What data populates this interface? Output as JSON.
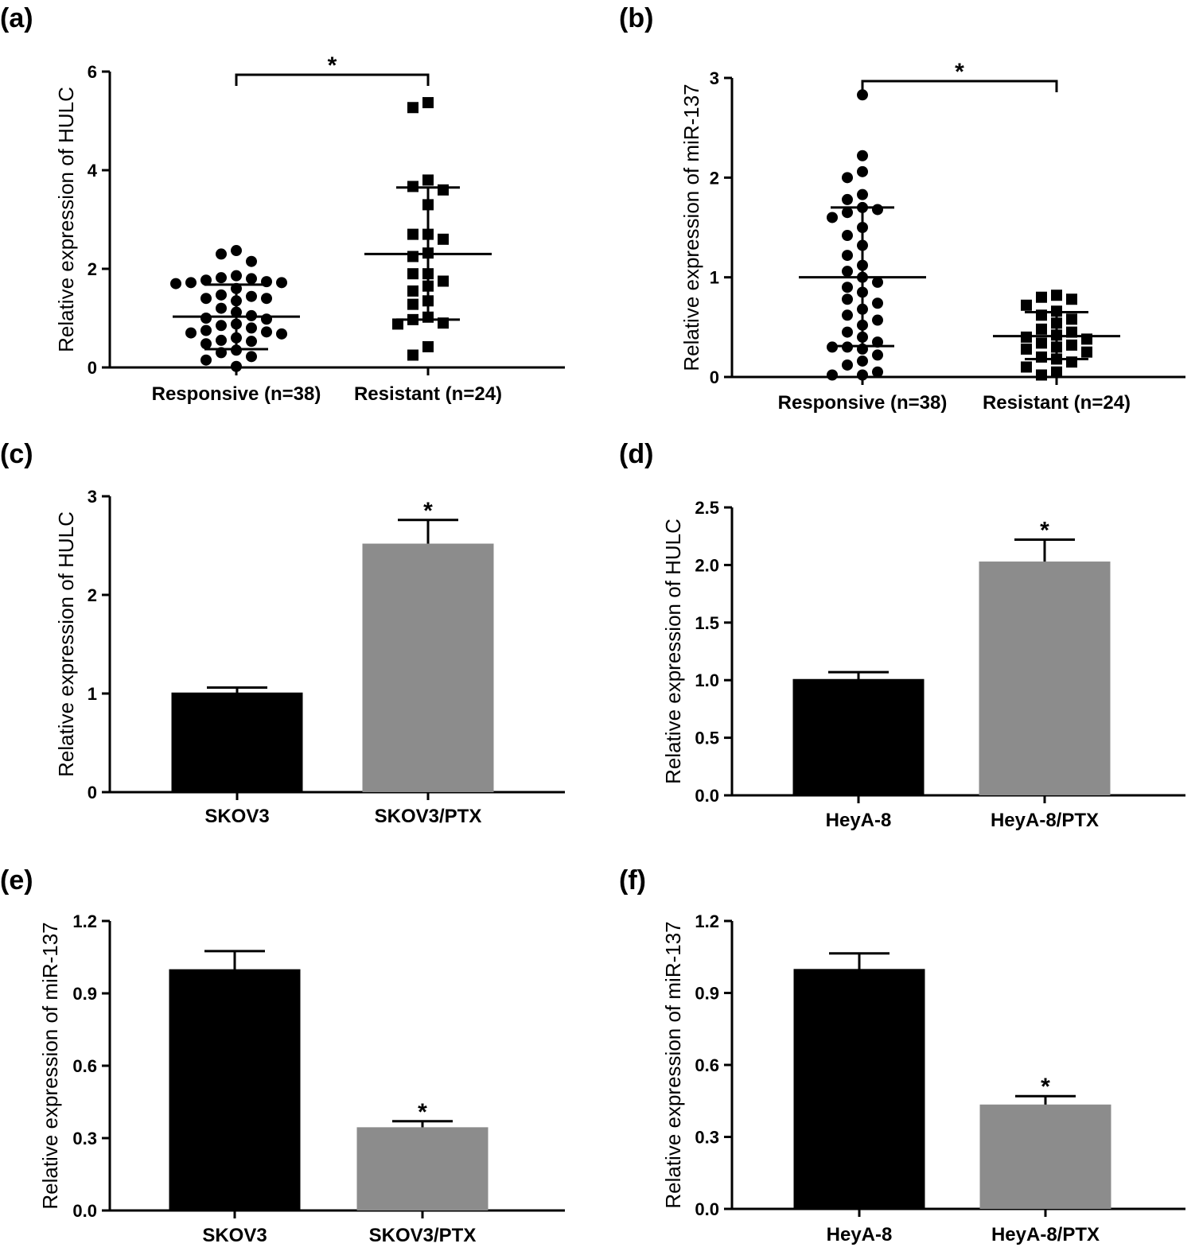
{
  "chart_data": [
    {
      "panel": "(a)",
      "type": "scatter",
      "ylabel": "Relative expression of HULC",
      "xlabel": "",
      "ylim": [
        0,
        6
      ],
      "yticks": [
        "0",
        "2",
        "4",
        "6"
      ],
      "significance": "*",
      "groups": [
        {
          "name": "Responsive (n=38)",
          "marker": "circle",
          "mean": 1.03,
          "sd_low": 0.37,
          "sd_high": 1.68,
          "values": [
            2.37,
            2.3,
            2.15,
            1.86,
            1.82,
            1.8,
            1.77,
            1.74,
            1.72,
            1.72,
            1.7,
            1.6,
            1.47,
            1.44,
            1.4,
            1.4,
            1.35,
            1.2,
            1.12,
            1.05,
            1.0,
            0.98,
            0.88,
            0.85,
            0.8,
            0.75,
            0.72,
            0.7,
            0.68,
            0.6,
            0.55,
            0.53,
            0.48,
            0.35,
            0.3,
            0.22,
            0.15,
            0.02
          ]
        },
        {
          "name": "Resistant (n=24)",
          "marker": "square",
          "mean": 2.3,
          "sd_low": 0.97,
          "sd_high": 3.65,
          "values": [
            5.37,
            5.27,
            3.8,
            3.67,
            3.6,
            3.3,
            2.7,
            2.7,
            2.6,
            2.32,
            2.25,
            1.9,
            1.9,
            1.75,
            1.65,
            1.55,
            1.35,
            1.28,
            1.02,
            0.97,
            0.9,
            0.88,
            0.42,
            0.25
          ]
        }
      ]
    },
    {
      "panel": "(b)",
      "type": "scatter",
      "ylabel": "Relative expression of miR-137",
      "xlabel": "",
      "ylim": [
        0,
        3
      ],
      "yticks": [
        "0",
        "1",
        "2",
        "3"
      ],
      "significance": "*",
      "groups": [
        {
          "name": "Responsive (n=38)",
          "marker": "circle",
          "mean": 1.0,
          "sd_low": 0.31,
          "sd_high": 1.7,
          "values": [
            2.83,
            2.22,
            2.06,
            2.0,
            1.83,
            1.78,
            1.7,
            1.68,
            1.65,
            1.6,
            1.5,
            1.42,
            1.32,
            1.22,
            1.12,
            1.06,
            1.0,
            0.95,
            0.9,
            0.85,
            0.78,
            0.74,
            0.68,
            0.62,
            0.57,
            0.52,
            0.45,
            0.4,
            0.35,
            0.3,
            0.3,
            0.28,
            0.22,
            0.16,
            0.12,
            0.05,
            0.02,
            0.02
          ]
        },
        {
          "name": "Resistant (n=24)",
          "marker": "square",
          "mean": 0.41,
          "sd_low": 0.18,
          "sd_high": 0.65,
          "values": [
            0.82,
            0.8,
            0.78,
            0.72,
            0.66,
            0.62,
            0.58,
            0.54,
            0.48,
            0.45,
            0.42,
            0.4,
            0.38,
            0.34,
            0.32,
            0.3,
            0.28,
            0.25,
            0.2,
            0.18,
            0.15,
            0.1,
            0.05,
            0.02
          ]
        }
      ]
    },
    {
      "panel": "(c)",
      "type": "bar",
      "ylabel": "Relative expression of HULC",
      "xlabel": "",
      "ylim": [
        0,
        3
      ],
      "yticks": [
        "0",
        "1",
        "2",
        "3"
      ],
      "categories": [
        "SKOV3",
        "SKOV3/PTX"
      ],
      "values": [
        1.01,
        2.52
      ],
      "errors": [
        0.05,
        0.24
      ],
      "colors": [
        "#000000",
        "#8c8c8c"
      ],
      "significance": [
        "",
        "*"
      ]
    },
    {
      "panel": "(d)",
      "type": "bar",
      "ylabel": "Relative expression of HULC",
      "xlabel": "",
      "ylim": [
        0,
        2.5
      ],
      "yticks": [
        "0.0",
        "0.5",
        "1.0",
        "1.5",
        "2.0",
        "2.5"
      ],
      "categories": [
        "HeyA-8",
        "HeyA-8/PTX"
      ],
      "values": [
        1.01,
        2.03
      ],
      "errors": [
        0.06,
        0.19
      ],
      "colors": [
        "#000000",
        "#8c8c8c"
      ],
      "significance": [
        "",
        "*"
      ]
    },
    {
      "panel": "(e)",
      "type": "bar",
      "ylabel": "Relative expression of miR-137",
      "xlabel": "",
      "ylim": [
        0,
        1.2
      ],
      "yticks": [
        "0.0",
        "0.3",
        "0.6",
        "0.9",
        "1.2"
      ],
      "categories": [
        "SKOV3",
        "SKOV3/PTX"
      ],
      "values": [
        1.0,
        0.345
      ],
      "errors": [
        0.075,
        0.025
      ],
      "colors": [
        "#000000",
        "#8c8c8c"
      ],
      "significance": [
        "",
        "*"
      ]
    },
    {
      "panel": "(f)",
      "type": "bar",
      "ylabel": "Relative expression of miR-137",
      "xlabel": "",
      "ylim": [
        0,
        1.2
      ],
      "yticks": [
        "0.0",
        "0.3",
        "0.6",
        "0.9",
        "1.2"
      ],
      "categories": [
        "HeyA-8",
        "HeyA-8/PTX"
      ],
      "values": [
        1.0,
        0.435
      ],
      "errors": [
        0.065,
        0.035
      ],
      "colors": [
        "#000000",
        "#8c8c8c"
      ],
      "significance": [
        "",
        "*"
      ]
    }
  ]
}
